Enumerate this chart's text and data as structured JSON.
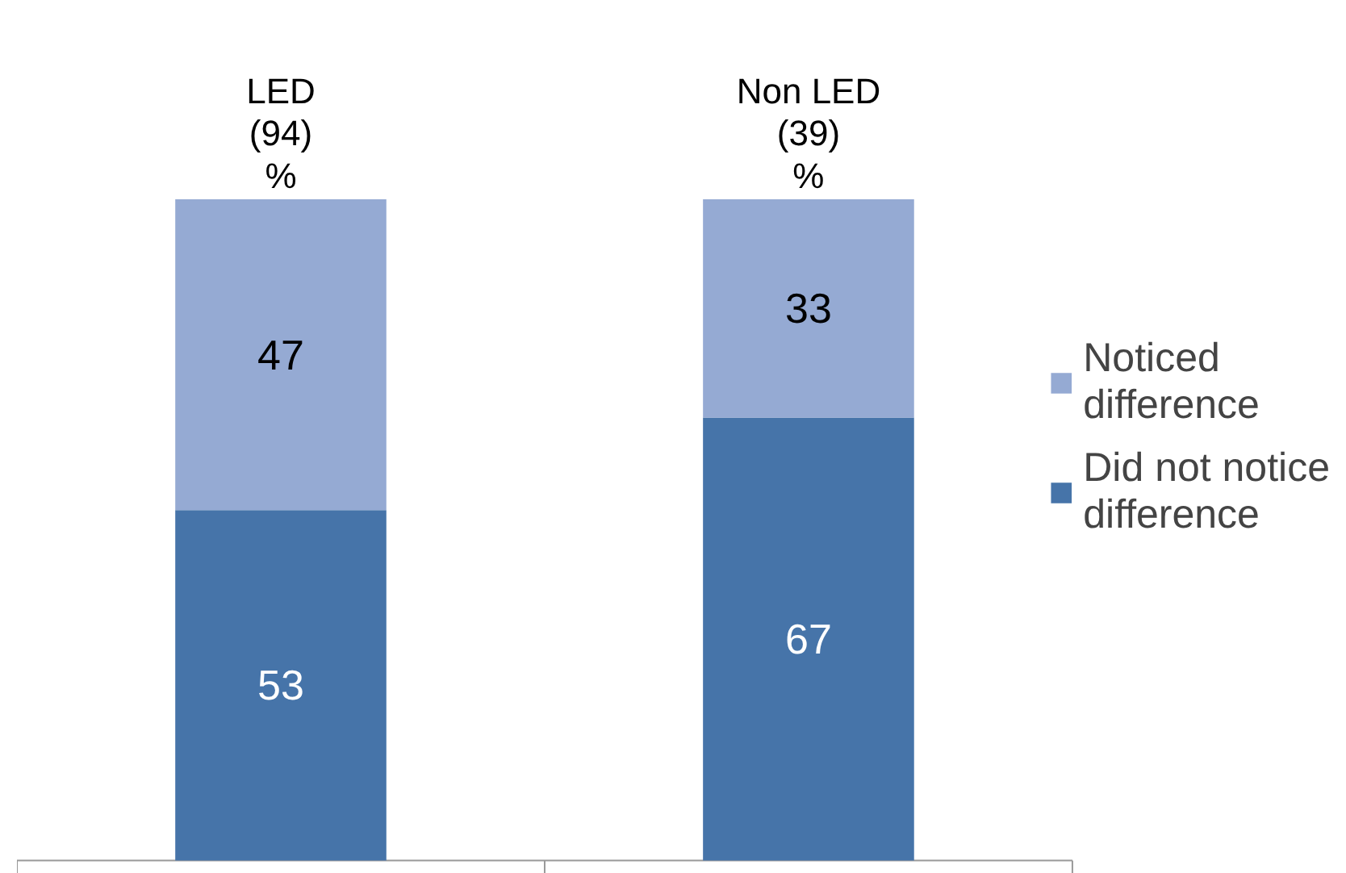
{
  "chart_data": {
    "type": "bar",
    "stacked": true,
    "categories": [
      "LED\n(94)\n%",
      "Non LED\n(39)\n%"
    ],
    "series": [
      {
        "name": "Did not notice difference",
        "color": "#4674a9",
        "values": [
          53,
          67
        ]
      },
      {
        "name": "Noticed difference",
        "color": "#95aad3",
        "values": [
          47,
          33
        ]
      }
    ],
    "data_labels": true,
    "legend": "right",
    "grid": false
  }
}
